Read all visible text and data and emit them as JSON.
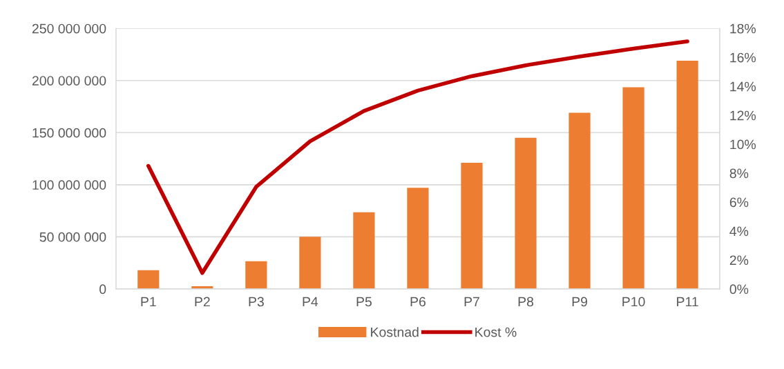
{
  "chart_data": {
    "type": "bar",
    "categories": [
      "P1",
      "P2",
      "P3",
      "P4",
      "P5",
      "P6",
      "P7",
      "P8",
      "P9",
      "P10",
      "P11"
    ],
    "series": [
      {
        "name": "Kostnad",
        "color": "#ed7d31",
        "values": [
          18000000,
          2600000,
          26500000,
          50000000,
          73500000,
          97000000,
          121000000,
          145000000,
          169000000,
          193500000,
          219000000
        ]
      },
      {
        "name": "Kost %",
        "type": "line",
        "axis": "y2",
        "color": "#c00000",
        "values": [
          8.5,
          1.1,
          7.05,
          10.2,
          12.3,
          13.7,
          14.7,
          15.45,
          16.05,
          16.6,
          17.1
        ]
      }
    ],
    "ylim": [
      0,
      250000000
    ],
    "yticks": [
      {
        "value": 0,
        "label": "0"
      },
      {
        "value": 50000000,
        "label": "50 000 000"
      },
      {
        "value": 100000000,
        "label": "100 000 000"
      },
      {
        "value": 150000000,
        "label": "150 000 000"
      },
      {
        "value": 200000000,
        "label": "200 000 000"
      },
      {
        "value": 250000000,
        "label": "250 000 000"
      }
    ],
    "y2lim": [
      0,
      18
    ],
    "y2ticks": [
      {
        "value": 0,
        "label": "0%"
      },
      {
        "value": 2,
        "label": "2%"
      },
      {
        "value": 4,
        "label": "4%"
      },
      {
        "value": 6,
        "label": "6%"
      },
      {
        "value": 8,
        "label": "8%"
      },
      {
        "value": 10,
        "label": "10%"
      },
      {
        "value": 12,
        "label": "12%"
      },
      {
        "value": 14,
        "label": "14%"
      },
      {
        "value": 16,
        "label": "16%"
      },
      {
        "value": 18,
        "label": "18%"
      }
    ],
    "grid": "y",
    "legend": "bottom"
  }
}
